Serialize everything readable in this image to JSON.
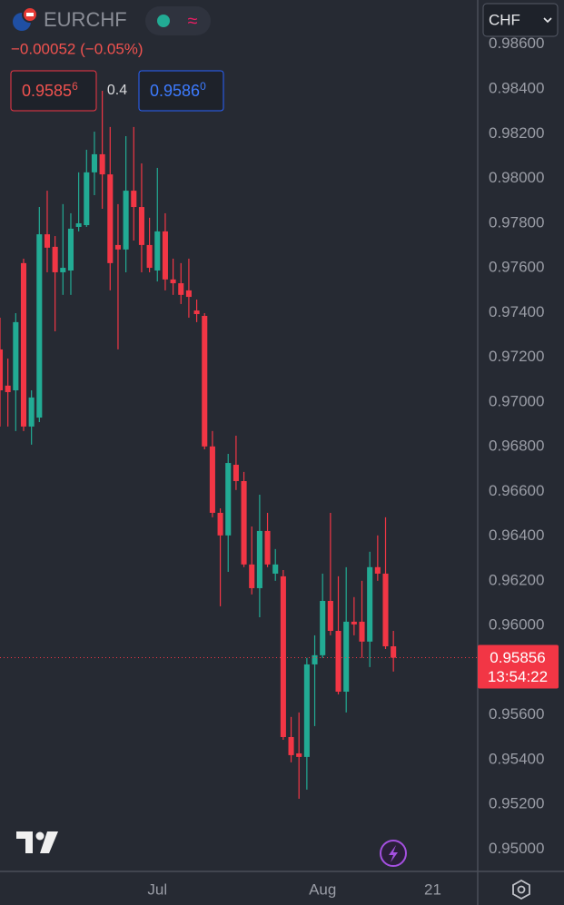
{
  "header": {
    "symbol": "EURCHF",
    "change": "−0.00052 (−0.05%)",
    "sell": {
      "main": "0.9585",
      "pip": "6"
    },
    "spread": "0.4",
    "buy": {
      "main": "0.9586",
      "pip": "0"
    },
    "currency": "CHF"
  },
  "chart_data": {
    "type": "candlestick",
    "categories": [
      null,
      null,
      null,
      null,
      null,
      null,
      null,
      null,
      null,
      null,
      null,
      null,
      null,
      null,
      null,
      null,
      null,
      null,
      null,
      null,
      null,
      null,
      null,
      null,
      null,
      null,
      null,
      null,
      null,
      null,
      null,
      null,
      null,
      null,
      null,
      null,
      null,
      null,
      null,
      null,
      null,
      null,
      null,
      null,
      null,
      null,
      null,
      null,
      null,
      null,
      null
    ],
    "open": [
      0.97235,
      0.97073,
      0.97052,
      0.97621,
      0.9689,
      0.9693,
      0.9775,
      0.97694,
      0.9758,
      0.97588,
      0.97783,
      0.97791,
      0.98027,
      0.98108,
      0.98018,
      0.97702,
      0.97682,
      0.97945,
      0.97872,
      0.97702,
      0.97588,
      0.97763,
      0.97548,
      0.97531,
      0.97499,
      0.97409,
      0.97385,
      0.96801,
      0.96504,
      0.96403,
      0.96719,
      0.96646,
      0.96273,
      0.96167,
      0.96423,
      0.96232,
      0.9622,
      0.95501,
      0.95428,
      0.95412,
      0.95826,
      0.95867,
      0.9611,
      0.95976,
      0.95704,
      0.96017,
      0.96017,
      0.95928,
      0.96261,
      0.96232,
      0.95907
    ],
    "high": [
      0.97377,
      0.97194,
      0.97397,
      0.97641,
      0.97052,
      0.97872,
      0.97945,
      0.97742,
      0.97885,
      0.97844,
      0.98027,
      0.98128,
      0.98209,
      0.98392,
      0.9823,
      0.97885,
      0.98189,
      0.9823,
      0.98067,
      0.97824,
      0.98047,
      0.97844,
      0.97641,
      0.97621,
      0.97641,
      0.97458,
      0.97397,
      0.9687,
      0.96524,
      0.96768,
      0.96849,
      0.96687,
      0.96443,
      0.96585,
      0.96504,
      0.96342,
      0.96248,
      0.95591,
      0.95611,
      0.95855,
      0.95956,
      0.96232,
      0.96504,
      0.9622,
      0.96261,
      0.96127,
      0.962,
      0.9633,
      0.96403,
      0.96484,
      0.95976
    ],
    "low": [
      0.9689,
      0.9689,
      0.9687,
      0.9687,
      0.96809,
      0.9691,
      0.9758,
      0.97316,
      0.97479,
      0.97479,
      0.97763,
      0.97783,
      0.97925,
      0.97864,
      0.97499,
      0.97235,
      0.9758,
      0.97722,
      0.9758,
      0.9758,
      0.97539,
      0.97499,
      0.97479,
      0.97438,
      0.97377,
      0.97357,
      0.96788,
      0.96484,
      0.96086,
      0.9624,
      0.96606,
      0.96261,
      0.96139,
      0.96037,
      0.96261,
      0.962,
      0.95489,
      0.95388,
      0.95225,
      0.95266,
      0.9555,
      0.95855,
      0.95956,
      0.95692,
      0.95611,
      0.95956,
      0.95855,
      0.95814,
      0.962,
      0.95895,
      0.95794
    ],
    "close": [
      0.97052,
      0.97044,
      0.97357,
      0.9689,
      0.9702,
      0.9775,
      0.9769,
      0.9758,
      0.976,
      0.97775,
      0.97799,
      0.98027,
      0.98108,
      0.98018,
      0.97621,
      0.97682,
      0.97945,
      0.97872,
      0.97702,
      0.976,
      0.97763,
      0.97548,
      0.97531,
      0.97479,
      0.9747,
      0.97393,
      0.96801,
      0.96504,
      0.96403,
      0.96727,
      0.96646,
      0.96273,
      0.96167,
      0.96423,
      0.96273,
      0.96273,
      0.95501,
      0.9542,
      0.95412,
      0.95826,
      0.95867,
      0.9611,
      0.95976,
      0.95704,
      0.96017,
      0.96005,
      0.95928,
      0.96261,
      0.96232,
      0.95907,
      0.95856
    ],
    "up_color": "#22ab94",
    "down_color": "#f23645",
    "xlim": [
      0,
      60.6
    ],
    "xticks": [
      {
        "value": 20,
        "label": "Jul"
      },
      {
        "value": 41,
        "label": "Aug"
      },
      {
        "value": 55,
        "label": "21"
      }
    ],
    "ylim": [
      0.949,
      0.98798
    ],
    "yticks": [
      {
        "value": 0.95,
        "label": "0.95000"
      },
      {
        "value": 0.952,
        "label": "0.95200"
      },
      {
        "value": 0.954,
        "label": "0.95400"
      },
      {
        "value": 0.956,
        "label": "0.95600"
      },
      {
        "value": 0.958,
        "label": "0.95800"
      },
      {
        "value": 0.96,
        "label": "0.96000"
      },
      {
        "value": 0.962,
        "label": "0.96200"
      },
      {
        "value": 0.964,
        "label": "0.96400"
      },
      {
        "value": 0.966,
        "label": "0.96600"
      },
      {
        "value": 0.968,
        "label": "0.96800"
      },
      {
        "value": 0.97,
        "label": "0.97000"
      },
      {
        "value": 0.972,
        "label": "0.97200"
      },
      {
        "value": 0.974,
        "label": "0.97400"
      },
      {
        "value": 0.976,
        "label": "0.97600"
      },
      {
        "value": 0.978,
        "label": "0.97800"
      },
      {
        "value": 0.98,
        "label": "0.98000"
      },
      {
        "value": 0.982,
        "label": "0.98200"
      },
      {
        "value": 0.984,
        "label": "0.98400"
      },
      {
        "value": 0.986,
        "label": "0.98600"
      }
    ],
    "grid": false,
    "last_price": {
      "value": 0.95856,
      "label": "0.95856"
    },
    "countdown": "13:54:22"
  }
}
